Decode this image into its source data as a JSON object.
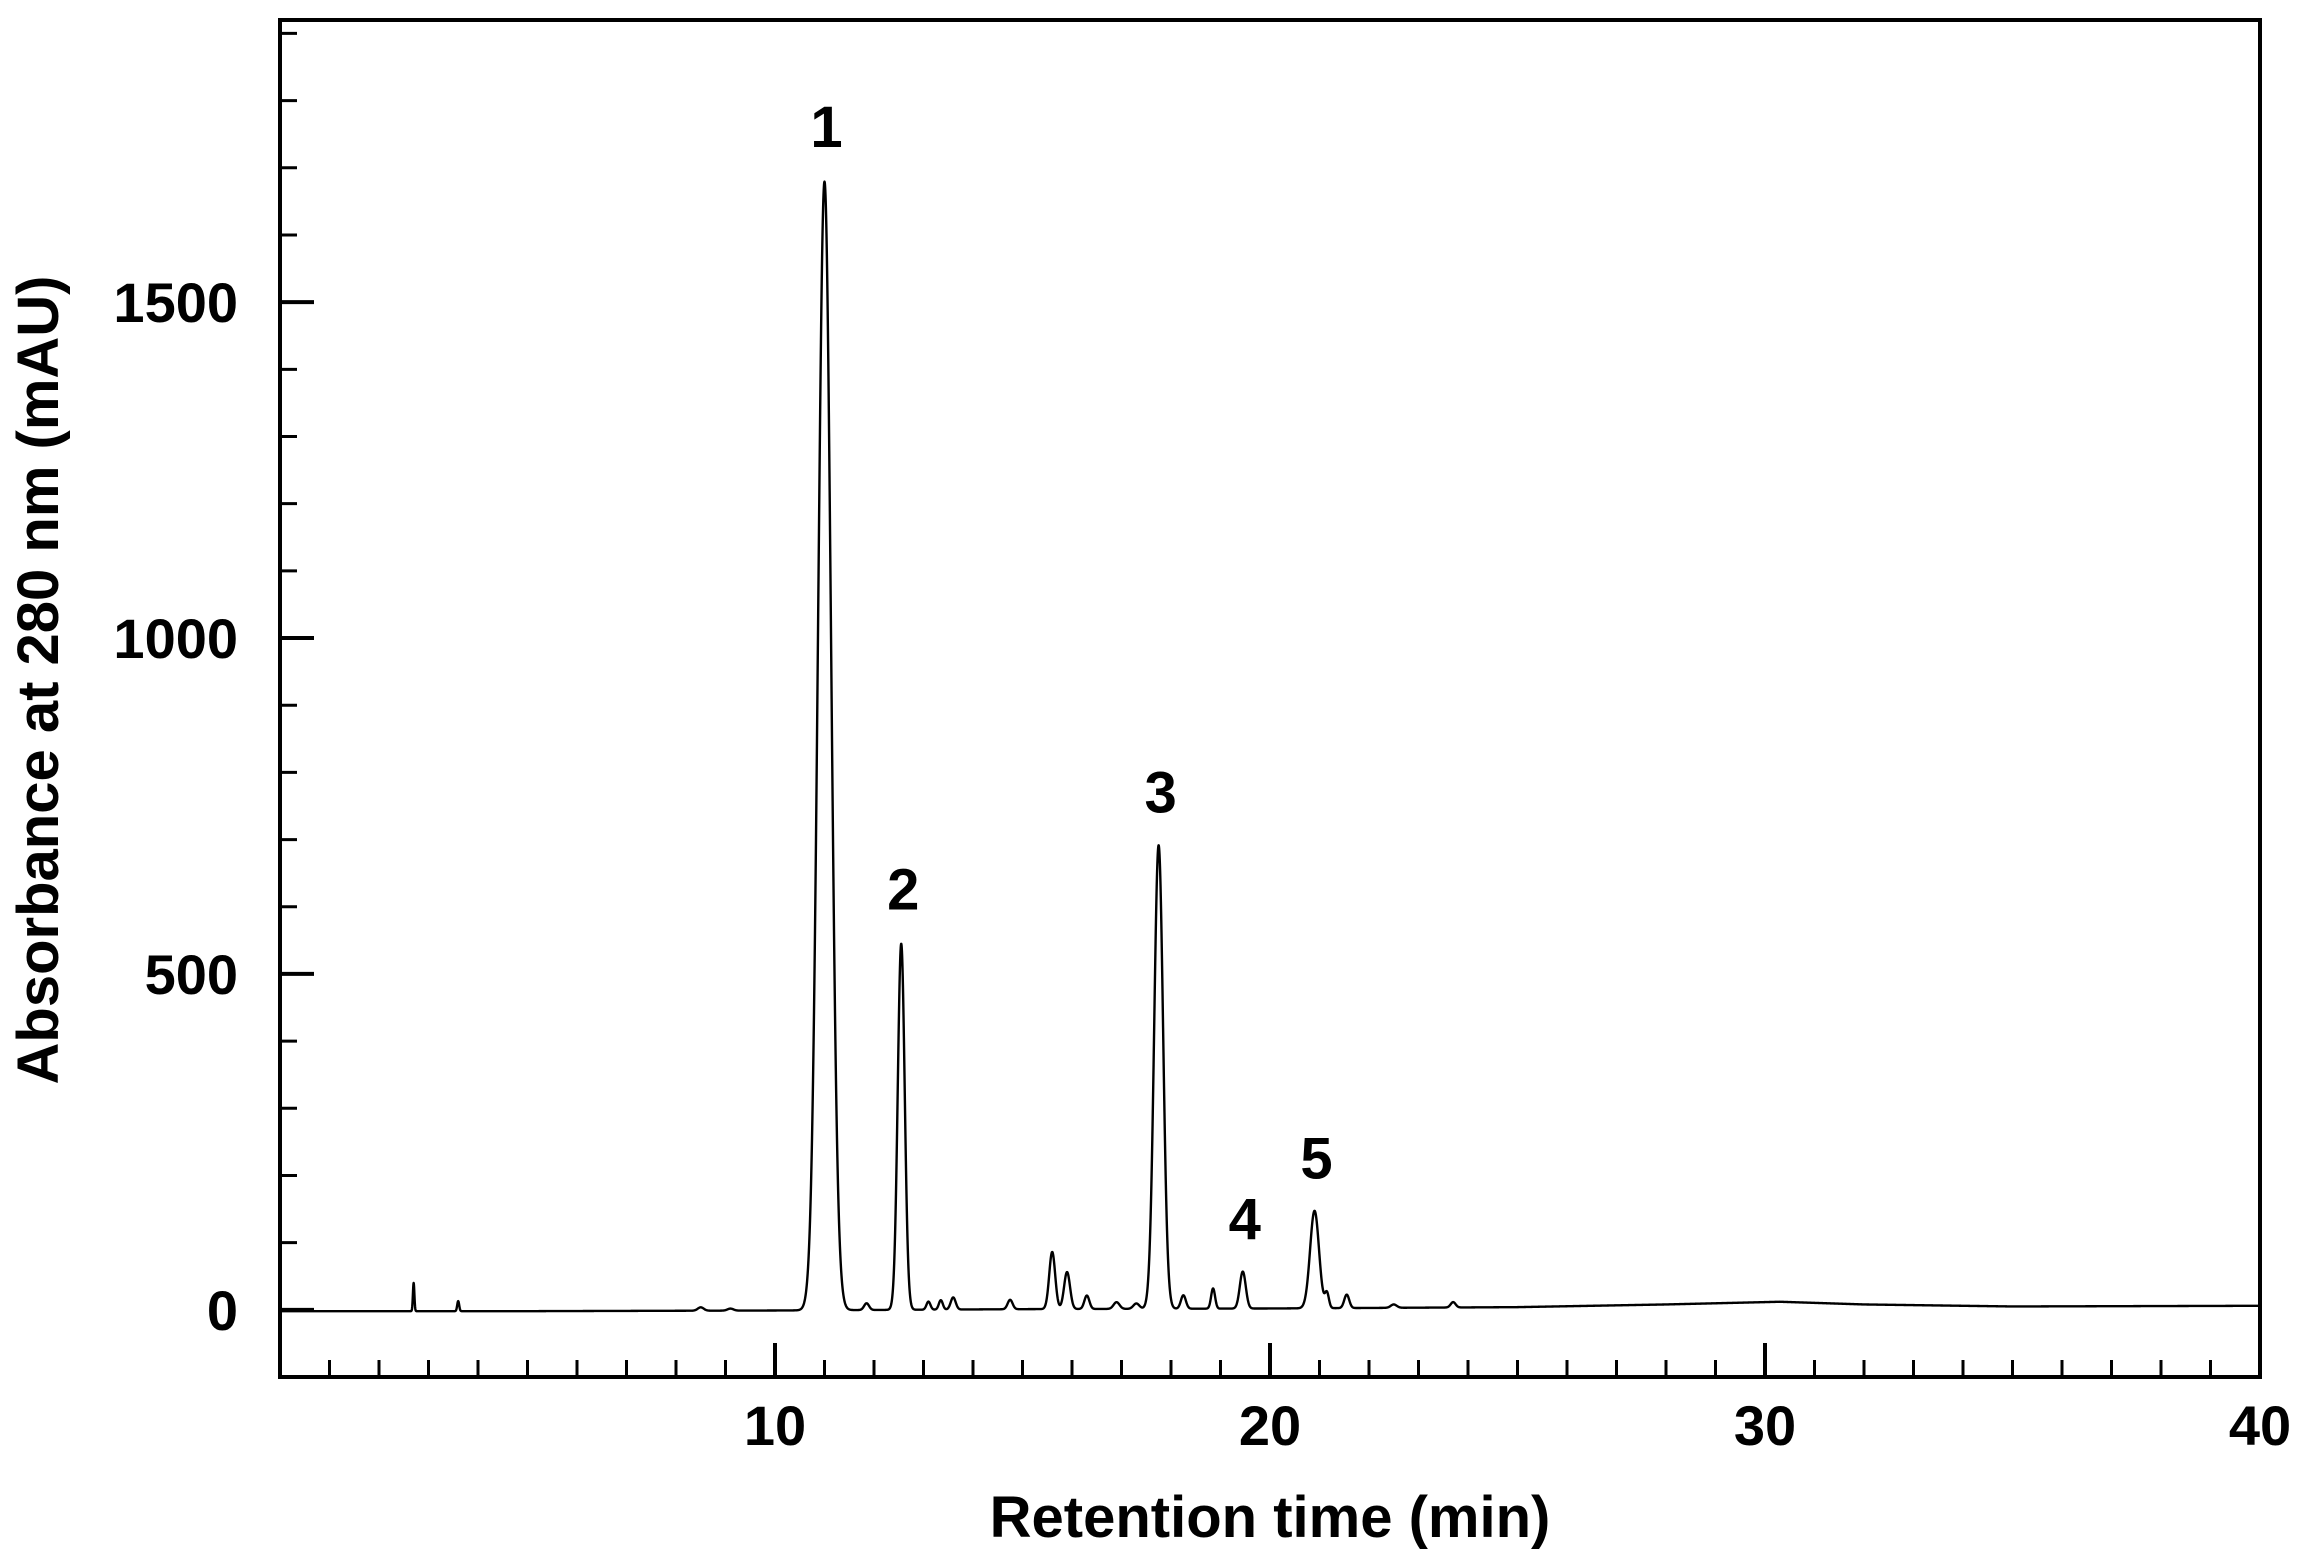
{
  "chart_data": {
    "type": "line",
    "title": "",
    "xlabel": "Retention time (min)",
    "ylabel": "Absorbance at  280 nm (mAU)",
    "xlim": [
      0,
      40
    ],
    "ylim": [
      -100,
      1920
    ],
    "x_major_ticks": [
      10,
      20,
      30,
      40
    ],
    "x_minor_step": 1,
    "x_tick_labels": [
      "10",
      "20",
      "30",
      "40"
    ],
    "y_major_ticks": [
      0,
      500,
      1000,
      1500
    ],
    "y_minor_step": 100,
    "y_tick_labels": [
      "0",
      "500",
      "1000",
      "1500"
    ],
    "grid": false,
    "line_color": "#000000",
    "baseline": [
      [
        0,
        -2
      ],
      [
        5,
        -2
      ],
      [
        10,
        -1
      ],
      [
        15,
        1
      ],
      [
        20,
        2
      ],
      [
        25,
        4
      ],
      [
        28,
        8
      ],
      [
        30.3,
        12
      ],
      [
        32,
        8
      ],
      [
        35,
        5
      ],
      [
        40,
        6
      ]
    ],
    "peaks": [
      {
        "label": "1",
        "x": 11.0,
        "y": 1680,
        "width": 0.13
      },
      {
        "label": "2",
        "x": 12.55,
        "y": 545,
        "width": 0.07
      },
      {
        "label": "3",
        "x": 17.75,
        "y": 690,
        "width": 0.09
      },
      {
        "label": "4",
        "x": 19.45,
        "y": 55,
        "width": 0.06
      },
      {
        "label": "5",
        "x": 20.9,
        "y": 145,
        "width": 0.09
      }
    ],
    "minor_peaks": [
      {
        "x": 2.7,
        "y": 42,
        "width": 0.015
      },
      {
        "x": 3.6,
        "y": 15,
        "width": 0.02
      },
      {
        "x": 8.5,
        "y": 5,
        "width": 0.06
      },
      {
        "x": 9.1,
        "y": 3,
        "width": 0.06
      },
      {
        "x": 11.85,
        "y": 10,
        "width": 0.05
      },
      {
        "x": 13.1,
        "y": 12,
        "width": 0.04
      },
      {
        "x": 13.35,
        "y": 14,
        "width": 0.04
      },
      {
        "x": 13.6,
        "y": 18,
        "width": 0.05
      },
      {
        "x": 14.75,
        "y": 14,
        "width": 0.05
      },
      {
        "x": 15.6,
        "y": 85,
        "width": 0.06
      },
      {
        "x": 15.9,
        "y": 55,
        "width": 0.06
      },
      {
        "x": 16.3,
        "y": 20,
        "width": 0.05
      },
      {
        "x": 16.9,
        "y": 10,
        "width": 0.06
      },
      {
        "x": 17.3,
        "y": 8,
        "width": 0.06
      },
      {
        "x": 18.25,
        "y": 20,
        "width": 0.05
      },
      {
        "x": 18.85,
        "y": 30,
        "width": 0.04
      },
      {
        "x": 21.15,
        "y": 22,
        "width": 0.04
      },
      {
        "x": 21.55,
        "y": 20,
        "width": 0.05
      },
      {
        "x": 22.5,
        "y": 5,
        "width": 0.06
      },
      {
        "x": 23.7,
        "y": 8,
        "width": 0.05
      }
    ]
  }
}
